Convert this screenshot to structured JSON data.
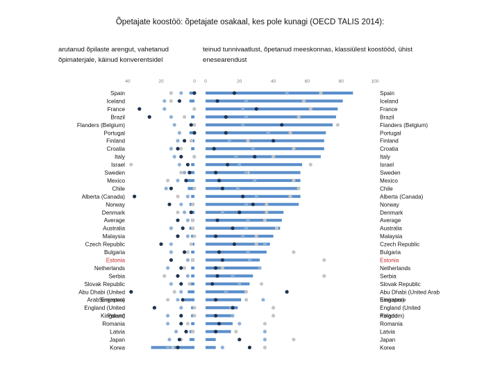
{
  "title": "Õpetajate koostöö: õpetajate osakaal, kes pole kunagi (OECD TALIS 2014):",
  "subtitle_left": "arutanud õpilaste arengut, vahetanud õpimaterjale, käinud konverentsidel",
  "subtitle_right": "teinud tunnivaatlust, õpetanud meeskonnas, klassiülest koostööd, ühist enesearendust",
  "colors": {
    "bar": "#5b8fcb",
    "dot_dark": "#1f3350",
    "dot_mid": "#8fb0d6",
    "dot_light": "#c4c4c4",
    "highlight": "#c0282d"
  },
  "chart_data": {
    "type": "bar",
    "highlight_category": "Estonia",
    "categories": [
      "Spain",
      "Iceland",
      "France",
      "Brazil",
      "Flanders (Belgium)",
      "Portugal",
      "Finland",
      "Croatia",
      "Italy",
      "Israel",
      "Sweden",
      "Mexico",
      "Chile",
      "Alberta (Canada)",
      "Norway",
      "Denmark",
      "Average",
      "Australia",
      "Malaysia",
      "Czech Republic",
      "Bulgaria",
      "Estonia",
      "Netherlands",
      "Serbia",
      "Slovak Republic",
      "Abu Dhabi (United Arab Emirates)",
      "Singapore",
      "England (United Kingdom)",
      "Poland",
      "Romania",
      "Latvia",
      "Japan",
      "Korea"
    ],
    "left_panel": {
      "xlim": [
        0,
        40
      ],
      "ticks": [
        "40",
        "20",
        "0"
      ],
      "bar_values": [
        3,
        3,
        1,
        2,
        1,
        3,
        1,
        2,
        1,
        2,
        3,
        6,
        4,
        2,
        3,
        2,
        2,
        3,
        2,
        1,
        2,
        2,
        2,
        2,
        3,
        4,
        6,
        2,
        2,
        2,
        3,
        3,
        26
      ],
      "dots": [
        [
          0,
          8,
          14
        ],
        [
          9,
          18,
          14
        ],
        [
          33,
          18,
          0
        ],
        [
          27,
          14,
          6
        ],
        [
          2,
          12,
          0
        ],
        [
          0,
          9,
          0
        ],
        [
          6,
          10,
          2
        ],
        [
          10,
          14,
          8
        ],
        [
          8,
          12,
          0
        ],
        [
          4,
          9,
          38
        ],
        [
          3,
          6,
          8
        ],
        [
          5,
          10,
          16
        ],
        [
          14,
          17,
          0
        ],
        [
          36,
          4,
          10
        ],
        [
          15,
          8,
          1
        ],
        [
          2,
          6,
          10
        ],
        [
          10,
          4,
          1
        ],
        [
          7,
          14,
          1
        ],
        [
          10,
          4,
          0
        ],
        [
          20,
          14,
          2
        ],
        [
          6,
          14,
          4
        ],
        [
          14,
          4,
          1
        ],
        [
          8,
          16,
          6
        ],
        [
          10,
          4,
          18
        ],
        [
          8,
          14,
          3
        ],
        [
          38,
          8,
          12
        ],
        [
          7,
          10,
          16
        ],
        [
          24,
          8,
          0
        ],
        [
          8,
          16,
          0
        ],
        [
          8,
          16,
          4
        ],
        [
          5,
          11,
          1
        ],
        [
          9,
          15,
          8
        ],
        [
          10,
          16,
          13
        ]
      ]
    },
    "right_panel": {
      "xlim": [
        0,
        100
      ],
      "ticks": [
        "0",
        "20",
        "40",
        "60",
        "80",
        "100"
      ],
      "bar_values": [
        87,
        81,
        78,
        77,
        75,
        71,
        70,
        70,
        68,
        57,
        56,
        56,
        55,
        56,
        55,
        46,
        45,
        44,
        40,
        38,
        36,
        32,
        32,
        28,
        26,
        24,
        21,
        19,
        16,
        16,
        15,
        6,
        6
      ],
      "dots": [
        [
          17,
          48,
          68
        ],
        [
          7,
          24,
          58
        ],
        [
          30,
          22,
          62
        ],
        [
          12,
          24,
          55
        ],
        [
          45,
          22,
          78
        ],
        [
          12,
          37,
          50
        ],
        [
          40,
          14,
          25
        ],
        [
          5,
          28,
          52
        ],
        [
          29,
          18,
          40
        ],
        [
          13,
          20,
          62
        ],
        [
          6,
          24,
          25
        ],
        [
          8,
          29,
          52
        ],
        [
          10,
          19,
          55
        ],
        [
          22,
          30,
          50
        ],
        [
          28,
          24,
          36
        ],
        [
          20,
          10,
          36
        ],
        [
          7,
          25,
          35
        ],
        [
          16,
          24,
          42
        ],
        [
          6,
          22,
          30
        ],
        [
          17,
          35,
          30
        ],
        [
          8,
          25,
          52
        ],
        [
          10,
          26,
          70
        ],
        [
          6,
          32,
          10
        ],
        [
          7,
          16,
          70
        ],
        [
          4,
          20,
          33
        ],
        [
          48,
          12,
          24
        ],
        [
          6,
          34,
          24
        ],
        [
          16,
          15,
          40
        ],
        [
          6,
          16,
          40
        ],
        [
          8,
          20,
          35
        ],
        [
          6,
          35,
          18
        ],
        [
          20,
          35,
          52
        ],
        [
          26,
          10,
          35
        ]
      ]
    }
  }
}
